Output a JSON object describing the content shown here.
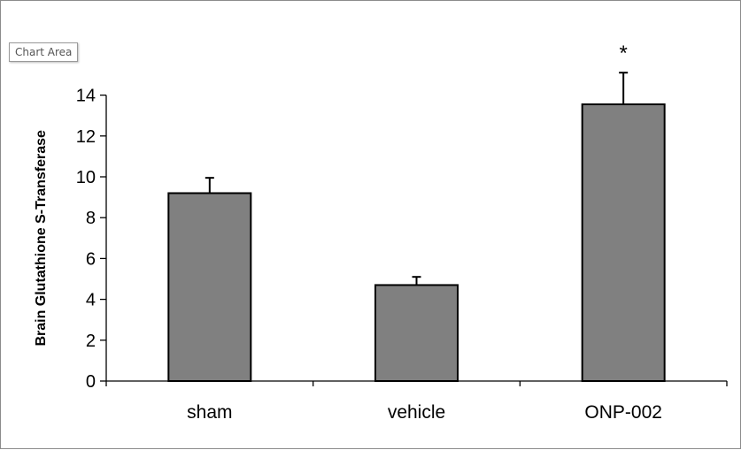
{
  "tooltip": "Chart Area",
  "chart_data": {
    "type": "bar",
    "title": "",
    "xlabel": "",
    "ylabel": "Brain Glutathione S-Transferase",
    "categories": [
      "sham",
      "vehicle",
      "ONP-002"
    ],
    "values": [
      9.2,
      4.7,
      13.55
    ],
    "error_plus": [
      0.75,
      0.4,
      1.55
    ],
    "annotations": [
      "",
      "",
      "*"
    ],
    "ylim": [
      0,
      15
    ],
    "yticks": [
      0,
      2,
      4,
      6,
      8,
      10,
      12,
      14
    ],
    "grid": false,
    "legend": "none",
    "colors": {
      "bar_fill": "#808080",
      "bar_edge": "#000000"
    }
  }
}
